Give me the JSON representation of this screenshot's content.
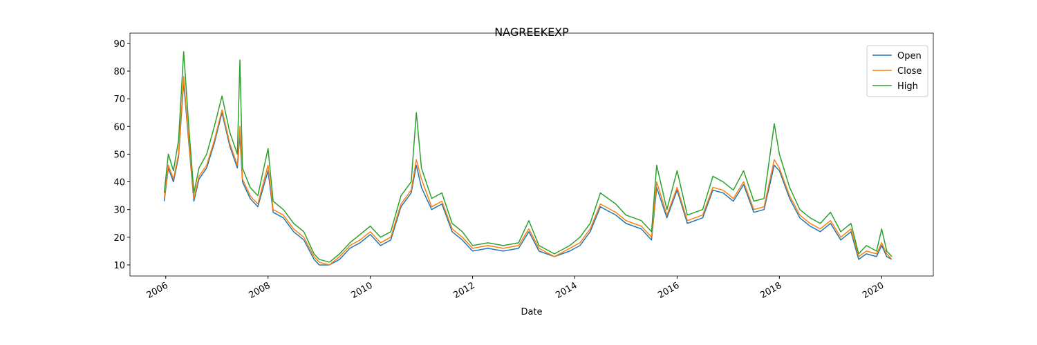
{
  "chart_data": {
    "type": "line",
    "title": "NAGREEKEXP",
    "xlabel": "Date",
    "x": [
      2005.97,
      2006.05,
      2006.15,
      2006.25,
      2006.35,
      2006.45,
      2006.55,
      2006.65,
      2006.8,
      2006.95,
      2007.1,
      2007.25,
      2007.4,
      2007.45,
      2007.5,
      2007.65,
      2007.8,
      2008.0,
      2008.1,
      2008.3,
      2008.5,
      2008.7,
      2008.9,
      2009.0,
      2009.2,
      2009.4,
      2009.6,
      2009.8,
      2010.0,
      2010.2,
      2010.4,
      2010.6,
      2010.8,
      2010.9,
      2011.0,
      2011.2,
      2011.4,
      2011.6,
      2011.8,
      2012.0,
      2012.3,
      2012.6,
      2012.9,
      2013.1,
      2013.3,
      2013.6,
      2013.9,
      2014.1,
      2014.3,
      2014.5,
      2014.8,
      2015.0,
      2015.3,
      2015.5,
      2015.6,
      2015.8,
      2016.0,
      2016.2,
      2016.5,
      2016.7,
      2016.9,
      2017.1,
      2017.3,
      2017.5,
      2017.7,
      2017.9,
      2018.0,
      2018.2,
      2018.4,
      2018.6,
      2018.8,
      2019.0,
      2019.2,
      2019.4,
      2019.55,
      2019.7,
      2019.9,
      2020.0,
      2020.1,
      2020.2
    ],
    "series": [
      {
        "name": "Open",
        "color": "#1f77b4",
        "values": [
          33,
          45,
          40,
          49,
          76,
          54,
          33,
          41,
          45,
          54,
          65,
          53,
          45,
          57,
          40,
          34,
          31,
          44,
          29,
          27,
          22,
          19,
          12,
          10,
          10,
          12,
          16,
          18,
          21,
          17,
          19,
          31,
          36,
          46,
          38,
          30,
          32,
          22,
          19,
          15,
          16,
          15,
          16,
          22,
          15,
          13,
          15,
          17,
          22,
          31,
          28,
          25,
          23,
          19,
          38,
          27,
          37,
          25,
          27,
          37,
          36,
          33,
          39,
          29,
          30,
          46,
          44,
          34,
          27,
          24,
          22,
          25,
          19,
          22,
          12,
          14,
          13,
          17,
          13,
          12
        ]
      },
      {
        "name": "Close",
        "color": "#ff7f0e",
        "values": [
          34,
          46,
          41,
          50,
          78,
          55,
          34,
          42,
          46,
          55,
          66,
          54,
          46,
          60,
          41,
          35,
          32,
          46,
          30,
          28,
          23,
          20,
          13,
          11,
          10,
          13,
          17,
          19,
          22,
          18,
          20,
          32,
          37,
          48,
          41,
          31,
          33,
          23,
          20,
          16,
          17,
          16,
          17,
          23,
          16,
          13,
          16,
          18,
          23,
          32,
          29,
          26,
          24,
          20,
          40,
          28,
          38,
          26,
          28,
          38,
          37,
          34,
          40,
          30,
          31,
          48,
          45,
          35,
          28,
          25,
          23,
          26,
          20,
          23,
          13,
          15,
          14,
          18,
          14,
          12
        ]
      },
      {
        "name": "High",
        "color": "#2ca02c",
        "values": [
          36,
          50,
          44,
          55,
          87,
          60,
          36,
          45,
          50,
          60,
          71,
          58,
          50,
          84,
          45,
          38,
          35,
          52,
          33,
          30,
          25,
          22,
          14,
          12,
          11,
          14,
          18,
          21,
          24,
          20,
          22,
          35,
          40,
          65,
          45,
          34,
          36,
          25,
          22,
          17,
          18,
          17,
          18,
          26,
          17,
          14,
          17,
          20,
          25,
          36,
          32,
          28,
          26,
          22,
          46,
          30,
          44,
          28,
          30,
          42,
          40,
          37,
          44,
          33,
          34,
          61,
          50,
          38,
          30,
          27,
          25,
          29,
          22,
          25,
          14,
          17,
          15,
          23,
          15,
          13
        ]
      }
    ],
    "xlim": [
      2005.3,
      2021.01
    ],
    "xticks": [
      2006,
      2008,
      2010,
      2012,
      2014,
      2016,
      2018,
      2020
    ],
    "ylim": [
      6.0,
      93.7
    ],
    "yticks": [
      10,
      20,
      30,
      40,
      50,
      60,
      70,
      80,
      90
    ],
    "legend": "upper right"
  }
}
